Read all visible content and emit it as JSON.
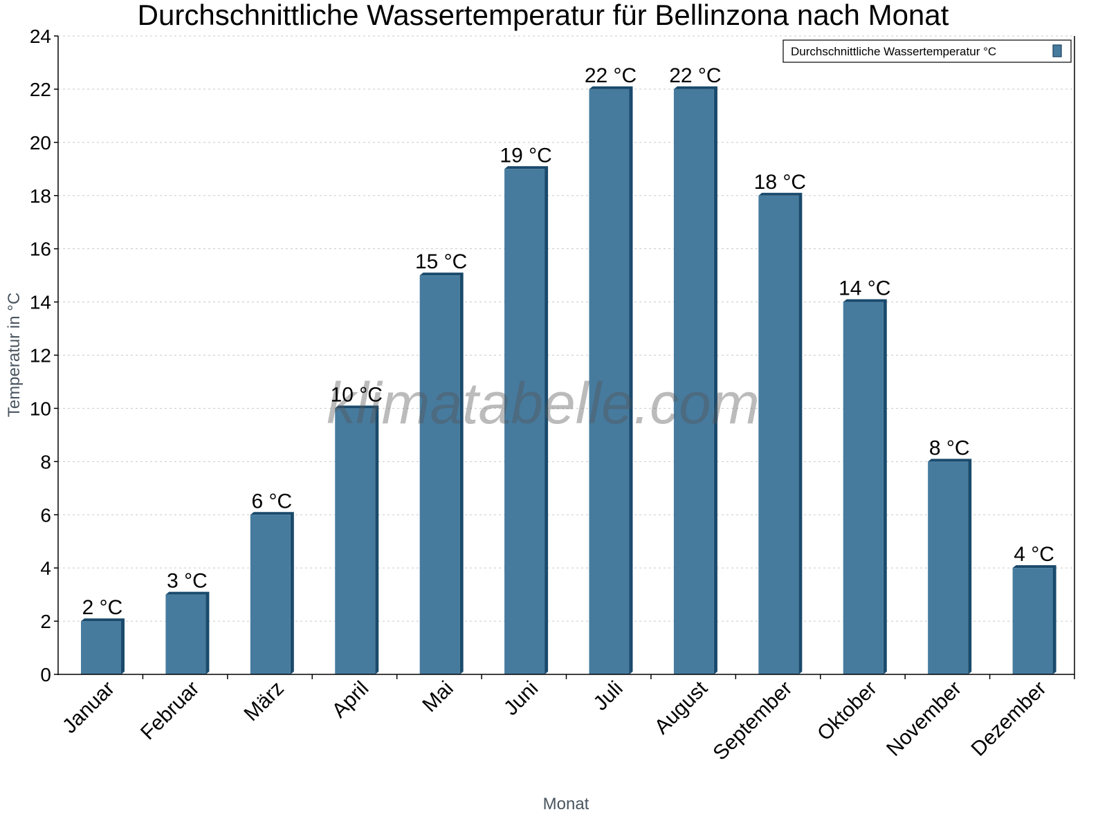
{
  "chart_data": {
    "type": "bar",
    "title": "Durchschnittliche Wassertemperatur für Bellinzona nach Monat",
    "xlabel": "Monat",
    "ylabel": "Temperatur in °C",
    "categories": [
      "Januar",
      "Februar",
      "März",
      "April",
      "Mai",
      "Juni",
      "Juli",
      "August",
      "September",
      "Oktober",
      "November",
      "Dezember"
    ],
    "series": [
      {
        "name": "Durchschnittliche Wassertemperatur °C",
        "values": [
          2,
          3,
          6,
          10,
          15,
          19,
          22,
          22,
          18,
          14,
          8,
          4
        ],
        "color": "#467b9e"
      }
    ],
    "data_labels": [
      "2 °C",
      "3 °C",
      "6 °C",
      "10 °C",
      "15 °C",
      "19 °C",
      "22 °C",
      "22 °C",
      "18 °C",
      "14 °C",
      "8 °C",
      "4 °C"
    ],
    "ylim": [
      0,
      24
    ],
    "yticks": [
      0,
      2,
      4,
      6,
      8,
      10,
      12,
      14,
      16,
      18,
      20,
      22,
      24
    ],
    "grid": true,
    "legend_position": "top-right",
    "watermark": "klimatabelle.com"
  }
}
